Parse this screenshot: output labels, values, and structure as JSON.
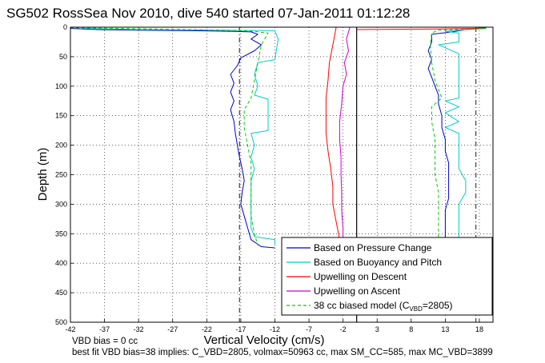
{
  "chart_data": {
    "type": "line",
    "title": "SG502 RossSea Nov 2010, dive 540 started 07-Jan-2011 01:12:28",
    "xlabel": "Vertical Velocity (cm/s)",
    "ylabel": "Depth (m)",
    "xlim": [
      -42,
      20
    ],
    "ylim": [
      500,
      0
    ],
    "xticks": [
      -42,
      -37,
      -32,
      -27,
      -22,
      -17,
      -12,
      -7,
      -2,
      3,
      8,
      13,
      18
    ],
    "yticks": [
      0,
      50,
      100,
      150,
      200,
      250,
      300,
      350,
      400,
      450,
      500
    ],
    "grid": true,
    "legend_position": "bottom-right",
    "reference_lines": {
      "solid_x": [
        0
      ],
      "dashdot_x": [
        -17.2,
        17.5
      ]
    },
    "series": [
      {
        "name": "Based on Pressure Change",
        "color": "#0000cc",
        "style": "solid",
        "points": [
          [
            -42,
            2
          ],
          [
            -38,
            4
          ],
          [
            -32,
            5
          ],
          [
            -24,
            6
          ],
          [
            -18,
            7
          ],
          [
            -15.5,
            8
          ],
          [
            -14.5,
            12
          ],
          [
            -15.5,
            20
          ],
          [
            -14,
            30
          ],
          [
            -15,
            40
          ],
          [
            -17,
            52
          ],
          [
            -17.5,
            65
          ],
          [
            -18.5,
            80
          ],
          [
            -18,
            95
          ],
          [
            -18.5,
            110
          ],
          [
            -18,
            125
          ],
          [
            -18.5,
            140
          ],
          [
            -18,
            160
          ],
          [
            -17.8,
            180
          ],
          [
            -17.5,
            200
          ],
          [
            -17.2,
            220
          ],
          [
            -16.8,
            240
          ],
          [
            -16.5,
            260
          ],
          [
            -16.8,
            280
          ],
          [
            -17,
            300
          ],
          [
            -16.5,
            320
          ],
          [
            -16,
            340
          ],
          [
            -15.5,
            360
          ],
          [
            -14,
            372
          ],
          [
            -12,
            374
          ],
          [
            19,
            2
          ],
          [
            16,
            4
          ],
          [
            14,
            8
          ],
          [
            11,
            12
          ],
          [
            11,
            25
          ],
          [
            10.5,
            40
          ],
          [
            11,
            55
          ],
          [
            10.5,
            70
          ],
          [
            11,
            85
          ],
          [
            11.5,
            100
          ],
          [
            12,
            115
          ],
          [
            12,
            130
          ],
          [
            12.5,
            150
          ],
          [
            12.5,
            170
          ],
          [
            13,
            190
          ],
          [
            13,
            210
          ],
          [
            13.5,
            230
          ],
          [
            13.5,
            250
          ],
          [
            13.5,
            270
          ],
          [
            13.5,
            290
          ],
          [
            13,
            310
          ],
          [
            13,
            330
          ],
          [
            13,
            350
          ],
          [
            13,
            360
          ]
        ]
      },
      {
        "name": "Based on Buoyancy and Pitch",
        "color": "#00cccc",
        "style": "solid",
        "points": [
          [
            -40,
            2
          ],
          [
            -32,
            4
          ],
          [
            -20,
            5
          ],
          [
            -12,
            6
          ],
          [
            -11.5,
            20
          ],
          [
            -11.8,
            40
          ],
          [
            -12,
            55
          ],
          [
            -14.5,
            60
          ],
          [
            -15,
            80
          ],
          [
            -14.5,
            100
          ],
          [
            -15,
            115
          ],
          [
            -13,
            122
          ],
          [
            -13,
            140
          ],
          [
            -13,
            160
          ],
          [
            -13,
            175
          ],
          [
            -15.5,
            180
          ],
          [
            -15,
            200
          ],
          [
            -15.5,
            220
          ],
          [
            -15,
            240
          ],
          [
            -15.5,
            260
          ],
          [
            -15.5,
            280
          ],
          [
            -15.5,
            300
          ],
          [
            -15.5,
            320
          ],
          [
            -15.5,
            340
          ],
          [
            -15,
            355
          ],
          [
            -12,
            360
          ],
          [
            -12,
            368
          ],
          [
            19,
            2
          ],
          [
            15,
            5
          ],
          [
            13,
            7
          ],
          [
            15,
            10
          ],
          [
            15,
            25
          ],
          [
            12,
            30
          ],
          [
            15,
            45
          ],
          [
            15,
            60
          ],
          [
            15,
            75
          ],
          [
            15,
            85
          ],
          [
            15,
            100
          ],
          [
            15,
            120
          ],
          [
            13,
            125
          ],
          [
            15,
            135
          ],
          [
            13,
            145
          ],
          [
            15,
            160
          ],
          [
            13,
            170
          ],
          [
            15,
            180
          ],
          [
            15,
            200
          ],
          [
            15,
            220
          ],
          [
            15,
            240
          ],
          [
            16,
            260
          ],
          [
            16,
            280
          ],
          [
            15,
            300
          ],
          [
            15,
            320
          ],
          [
            15,
            340
          ],
          [
            15,
            360
          ]
        ]
      },
      {
        "name": "Upwelling on Descent",
        "color": "#ff0000",
        "style": "solid",
        "points": [
          [
            -3,
            0
          ],
          [
            -3.5,
            30
          ],
          [
            -4,
            60
          ],
          [
            -4.2,
            90
          ],
          [
            -4.5,
            120
          ],
          [
            -4.5,
            150
          ],
          [
            -4.5,
            180
          ],
          [
            -4.2,
            210
          ],
          [
            -3.8,
            240
          ],
          [
            -3.5,
            270
          ],
          [
            -3.5,
            300
          ],
          [
            -3,
            330
          ],
          [
            -2.5,
            360
          ],
          [
            -2.5,
            372
          ],
          [
            0,
            4
          ],
          [
            12,
            3
          ],
          [
            17,
            2
          ],
          [
            19,
            1
          ]
        ]
      },
      {
        "name": "Upwelling on Ascent",
        "color": "#cc00cc",
        "style": "solid",
        "points": [
          [
            -1,
            0
          ],
          [
            -1.5,
            20
          ],
          [
            -1.2,
            40
          ],
          [
            -1.8,
            60
          ],
          [
            -1.5,
            80
          ],
          [
            -2,
            100
          ],
          [
            -2.2,
            130
          ],
          [
            -2.5,
            160
          ],
          [
            -2.5,
            190
          ],
          [
            -2.3,
            220
          ],
          [
            -2.3,
            250
          ],
          [
            -2.2,
            280
          ],
          [
            -2.2,
            310
          ],
          [
            -2,
            340
          ],
          [
            -2,
            360
          ]
        ]
      },
      {
        "name": "38 cc biased model (C_VBD=2805)",
        "color": "#00cc00",
        "style": "dashed",
        "points": [
          [
            -42,
            1
          ],
          [
            -30,
            3
          ],
          [
            -20,
            5
          ],
          [
            -15,
            7
          ],
          [
            -13,
            10
          ],
          [
            -14,
            30
          ],
          [
            -14.5,
            60
          ],
          [
            -15,
            90
          ],
          [
            -15.5,
            120
          ],
          [
            -16.5,
            140
          ],
          [
            -16.5,
            170
          ],
          [
            -16,
            200
          ],
          [
            -15.5,
            230
          ],
          [
            -15.5,
            260
          ],
          [
            -15.5,
            290
          ],
          [
            -15.5,
            320
          ],
          [
            -15,
            350
          ],
          [
            -14.5,
            370
          ],
          [
            19,
            2
          ],
          [
            17,
            3
          ],
          [
            12,
            5
          ],
          [
            11,
            10
          ],
          [
            10.8,
            30
          ],
          [
            11,
            60
          ],
          [
            11.5,
            90
          ],
          [
            12.5,
            120
          ],
          [
            11,
            135
          ],
          [
            11,
            160
          ],
          [
            11.5,
            190
          ],
          [
            11.5,
            220
          ],
          [
            11.5,
            250
          ],
          [
            12,
            280
          ],
          [
            12,
            310
          ],
          [
            12,
            340
          ],
          [
            12,
            360
          ]
        ]
      }
    ],
    "legend": [
      {
        "label": "Based on Pressure Change",
        "color": "#0000cc",
        "style": "solid"
      },
      {
        "label": "Based on Buoyancy and Pitch",
        "color": "#00cccc",
        "style": "solid"
      },
      {
        "label": "Upwelling on Descent",
        "color": "#ff0000",
        "style": "solid"
      },
      {
        "label": "Upwelling on Ascent",
        "color": "#cc00cc",
        "style": "solid"
      },
      {
        "label": "38 cc biased model (C",
        "sub": "VBD",
        "suffix": "=2805)",
        "color": "#00cc00",
        "style": "dashed"
      }
    ]
  },
  "notes": {
    "line1": "VBD bias = 0 cc",
    "line2": "best fit VBD bias=38 implies: C_VBD=2805, volmax=50963 cc, max SM_CC=585, max MC_VBD=3899"
  }
}
